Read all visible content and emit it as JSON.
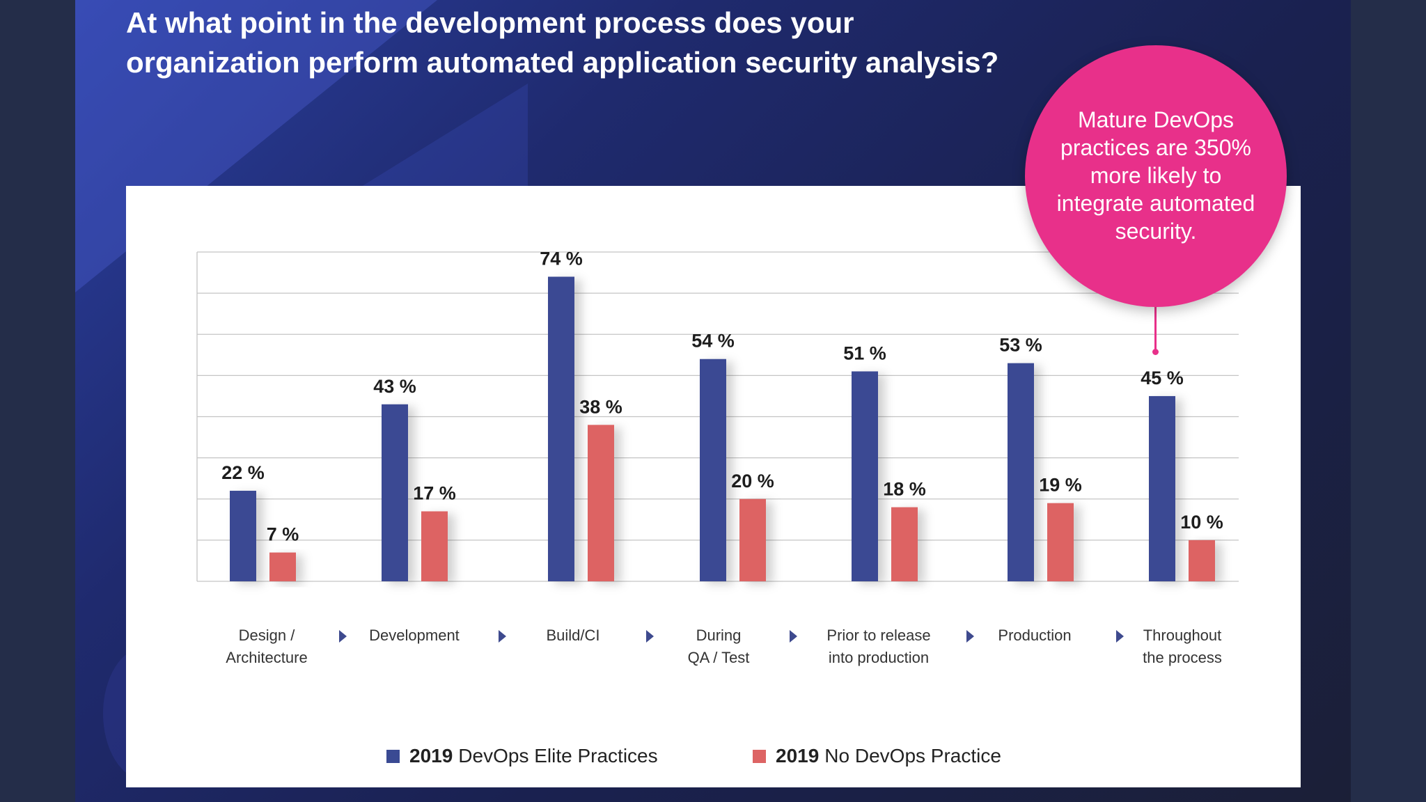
{
  "title_line1": "At what point in the development process does your",
  "title_line2": "organization perform automated application security analysis?",
  "callout": {
    "text": "Mature DevOps practices are 350% more likely to integrate automated security."
  },
  "colors": {
    "elite": "#3a4a93",
    "no_devops": "#dd6464",
    "callout": "#e8308a",
    "arrow": "#3e4a8e"
  },
  "legend": {
    "elite_year": "2019",
    "elite_label": "DevOps Elite Practices",
    "no_year": "2019",
    "no_label": "No DevOps Practice"
  },
  "chart_data": {
    "type": "bar",
    "title": "At what point in the development process does your organization perform automated application security analysis?",
    "categories": [
      [
        "Design /",
        "Architecture"
      ],
      [
        "Development"
      ],
      [
        "Build/CI"
      ],
      [
        "During",
        "QA / Test"
      ],
      [
        "Prior to release",
        "into production"
      ],
      [
        "Production"
      ],
      [
        "Throughout",
        "the process"
      ]
    ],
    "series": [
      {
        "name": "2019 DevOps Elite Practices",
        "values": [
          22,
          43,
          74,
          54,
          51,
          53,
          45
        ],
        "labels": [
          "22 %",
          "43 %",
          "74 %",
          "54 %",
          "51 %",
          "53 %",
          "45 %"
        ]
      },
      {
        "name": "2019 No DevOps Practice",
        "values": [
          7,
          17,
          38,
          20,
          18,
          19,
          10
        ],
        "labels": [
          "7 %",
          "17 %",
          "38 %",
          "20 %",
          "18 %",
          "19 %",
          "10 %"
        ]
      }
    ],
    "ylim": [
      0,
      80
    ],
    "grid": true,
    "legend_position": "bottom"
  }
}
